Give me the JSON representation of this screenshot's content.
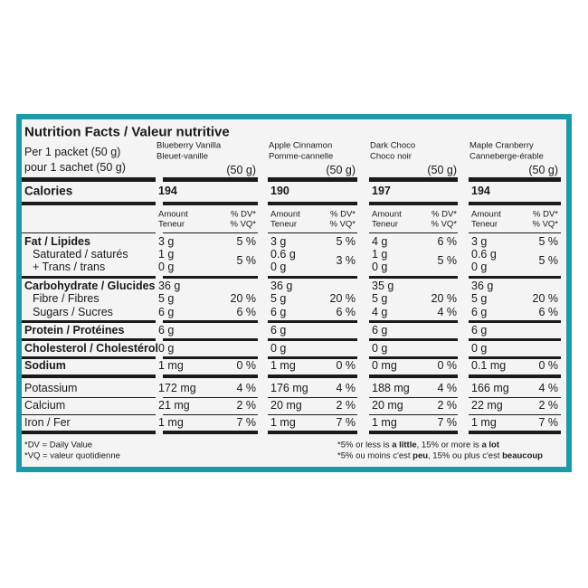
{
  "title": "Nutrition Facts / Valeur nutritive",
  "serving": [
    "Per 1 packet (50 g)",
    "pour 1 sachet (50 g)"
  ],
  "calories_label": "Calories",
  "columns": [
    {
      "name": "Blueberry Vanilla",
      "name_fr": "Bleuet-vanille",
      "size": "(50 g)",
      "calories": "194",
      "amount_header": [
        "Amount",
        "Teneur"
      ],
      "dv_header": [
        "% DV*",
        "% VQ*"
      ]
    },
    {
      "name": "Apple Cinnamon",
      "name_fr": "Pomme-cannelle",
      "size": "(50 g)",
      "calories": "190",
      "amount_header": [
        "Amount",
        "Teneur"
      ],
      "dv_header": [
        "% DV*",
        "% VQ*"
      ]
    },
    {
      "name": "Dark Choco",
      "name_fr": "Choco noir",
      "size": "(50 g)",
      "calories": "197",
      "amount_header": [
        "Amount",
        "Teneur"
      ],
      "dv_header": [
        "% DV*",
        "% VQ*"
      ]
    },
    {
      "name": "Maple Cranberry",
      "name_fr": "Canneberge-érable",
      "size": "(50 g)",
      "calories": "194",
      "amount_header": [
        "Amount",
        "Teneur"
      ],
      "dv_header": [
        "% DV*",
        "% VQ*"
      ]
    }
  ],
  "nutrients": [
    {
      "lines": [
        {
          "label": "Fat / Lipides",
          "amounts": [
            "3 g",
            "3 g",
            "4 g",
            "3 g"
          ],
          "dv": [
            "5 %",
            "5 %",
            "6 %",
            "5 %"
          ]
        },
        {
          "label": "Saturated / saturés",
          "amounts": [
            "1 g",
            "0.6 g",
            "1 g",
            "0.6 g"
          ]
        },
        {
          "label": "+ Trans / trans",
          "amounts": [
            "0 g",
            "0 g",
            "0 g",
            "0 g"
          ]
        }
      ],
      "combined_dv": [
        "5 %",
        "3 %",
        "5 %",
        "5 %"
      ]
    },
    {
      "lines": [
        {
          "label": "Carbohydrate / Glucides",
          "amounts": [
            "36 g",
            "36 g",
            "35 g",
            "36 g"
          ]
        },
        {
          "label": "Fibre / Fibres",
          "amounts": [
            "5 g",
            "5 g",
            "5 g",
            "5 g"
          ],
          "dv": [
            "20 %",
            "20 %",
            "20 %",
            "20 %"
          ]
        },
        {
          "label": "Sugars / Sucres",
          "amounts": [
            "6 g",
            "6 g",
            "4 g",
            "6 g"
          ],
          "dv": [
            "6 %",
            "6 %",
            "4 %",
            "6 %"
          ]
        }
      ]
    },
    {
      "lines": [
        {
          "label": "Protein / Protéines",
          "amounts": [
            "6 g",
            "6 g",
            "6 g",
            "6 g"
          ]
        }
      ]
    },
    {
      "lines": [
        {
          "label": "Cholesterol / Cholestérol",
          "amounts": [
            "0 g",
            "0 g",
            "0 g",
            "0 g"
          ]
        }
      ]
    },
    {
      "lines": [
        {
          "label": "Sodium",
          "amounts": [
            "1 mg",
            "1 mg",
            "0 mg",
            "0.1 mg"
          ],
          "dv": [
            "0 %",
            "0 %",
            "0 %",
            "0 %"
          ]
        }
      ]
    },
    {
      "lines": [
        {
          "label": "Potassium",
          "amounts": [
            "172 mg",
            "176 mg",
            "188 mg",
            "166 mg"
          ],
          "dv": [
            "4 %",
            "4 %",
            "4 %",
            "4 %"
          ]
        }
      ]
    },
    {
      "lines": [
        {
          "label": "Calcium",
          "amounts": [
            "21 mg",
            "20 mg",
            "20 mg",
            "22 mg"
          ],
          "dv": [
            "2 %",
            "2 %",
            "2 %",
            "2 %"
          ]
        }
      ]
    },
    {
      "lines": [
        {
          "label": "Iron / Fer",
          "amounts": [
            "1 mg",
            "1 mg",
            "1 mg",
            "1 mg"
          ],
          "dv": [
            "7 %",
            "7 %",
            "7 %",
            "7 %"
          ]
        }
      ]
    }
  ],
  "footnotes": {
    "left": [
      "*DV = Daily Value",
      "*VQ = valeur quotidienne"
    ],
    "right": [
      [
        "*5% or less is ",
        "a little",
        ", 15% or more is ",
        "a lot"
      ],
      [
        "*5% ou moins c'est ",
        "peu",
        ", 15% ou plus c'est ",
        "beaucoup"
      ]
    ]
  }
}
